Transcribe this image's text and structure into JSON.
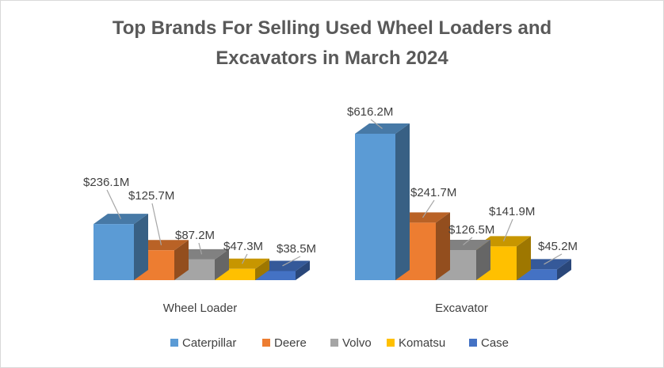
{
  "chart_data": {
    "type": "bar",
    "title_lines": [
      "Top Brands For Selling Used Wheel Loaders and",
      "Excavators in March 2024"
    ],
    "categories": [
      "Wheel Loader",
      "Excavator"
    ],
    "series": [
      {
        "name": "Caterpillar",
        "values": [
          236.1,
          616.2
        ],
        "labels": [
          "$236.1M",
          "$616.2M"
        ],
        "color": "#5B9BD5"
      },
      {
        "name": "Deere",
        "values": [
          125.7,
          241.7
        ],
        "labels": [
          "$125.7M",
          "$241.7M"
        ],
        "color": "#ED7D31"
      },
      {
        "name": "Volvo",
        "values": [
          87.2,
          126.5
        ],
        "labels": [
          "$87.2M",
          "$126.5M"
        ],
        "color": "#A5A5A5"
      },
      {
        "name": "Komatsu",
        "values": [
          47.3,
          141.9
        ],
        "labels": [
          "$47.3M",
          "$141.9M"
        ],
        "color": "#FFC000"
      },
      {
        "name": "Case",
        "values": [
          38.5,
          45.2
        ],
        "labels": [
          "$38.5M",
          "$45.2M"
        ],
        "color": "#4472C4"
      }
    ],
    "ylim": [
      0,
      616.2
    ],
    "grid": false,
    "legend_position": "bottom",
    "style": "3d-clustered-column"
  }
}
